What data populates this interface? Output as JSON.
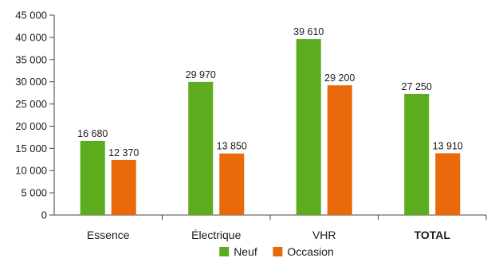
{
  "chart_data": {
    "type": "bar",
    "title": "",
    "xlabel": "",
    "ylabel": "",
    "categories": [
      "Essence",
      "Électrique",
      "VHR",
      "TOTAL"
    ],
    "series": [
      {
        "name": "Neuf",
        "values": [
          16680,
          29970,
          39610,
          27250
        ],
        "labels": [
          "16 680",
          "29 970",
          "39 610",
          "27 250"
        ],
        "color": "#5dab1f"
      },
      {
        "name": "Occasion",
        "values": [
          12370,
          13850,
          29200,
          13910
        ],
        "labels": [
          "12 370",
          "13 850",
          "29 200",
          "13 910"
        ],
        "color": "#ea6a0b"
      }
    ],
    "ylim": [
      0,
      45000
    ],
    "yticks": [
      0,
      5000,
      10000,
      15000,
      20000,
      25000,
      30000,
      35000,
      40000,
      45000
    ],
    "ytick_labels": [
      "0",
      "5 000",
      "10 000",
      "15 000",
      "20 000",
      "25 000",
      "30 000",
      "35 000",
      "40 000",
      "45 000"
    ],
    "bold_categories": [
      "TOTAL"
    ],
    "grid": false,
    "legend_position": "bottom-center"
  }
}
